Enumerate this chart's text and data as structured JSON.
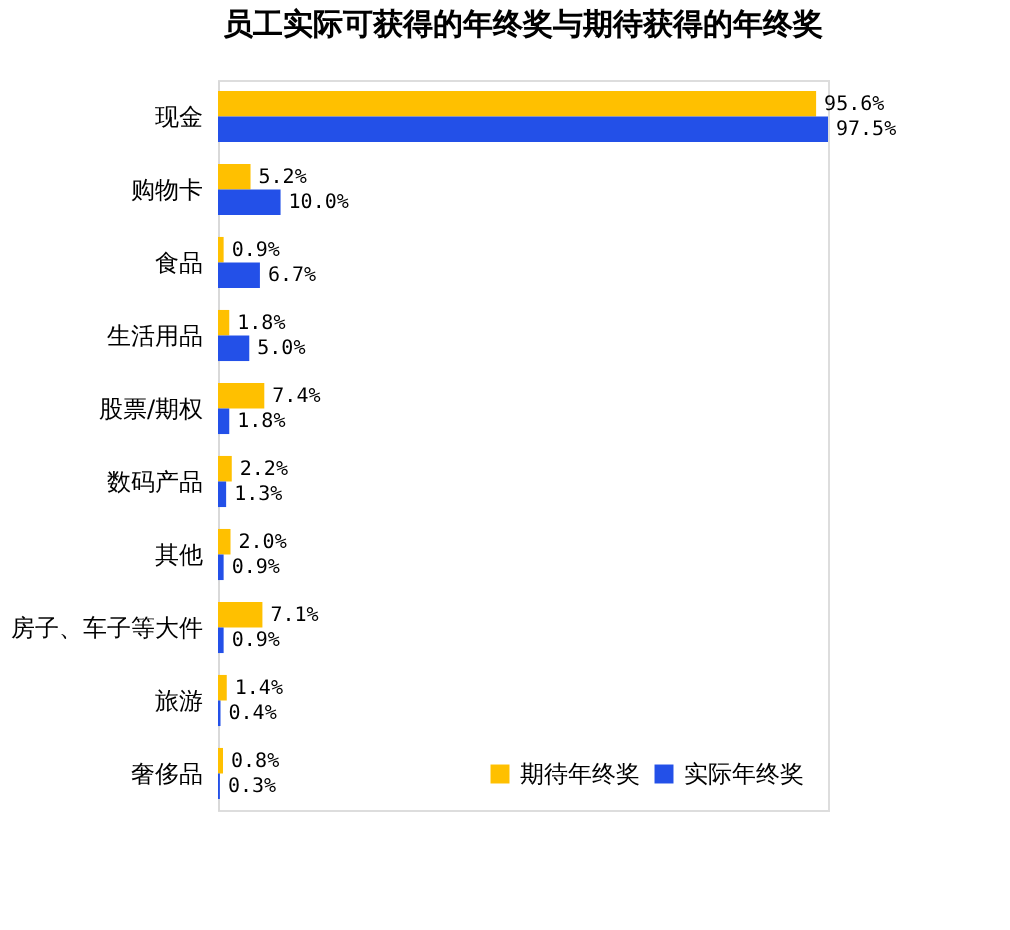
{
  "chart_data": {
    "type": "bar",
    "orientation": "horizontal",
    "title": "员工实际可获得的年终奖与期待获得的年终奖",
    "categories": [
      "现金",
      "购物卡",
      "食品",
      "生活用品",
      "股票/期权",
      "数码产品",
      "其他",
      "房子、车子等大件",
      "旅游",
      "奢侈品"
    ],
    "series": [
      {
        "name": "期待年终奖",
        "color": "#ffc000",
        "values": [
          95.6,
          5.2,
          0.9,
          1.8,
          7.4,
          2.2,
          2.0,
          7.1,
          1.4,
          0.8
        ],
        "value_labels": [
          "95.6%",
          "5.2%",
          "0.9%",
          "1.8%",
          "7.4%",
          "2.2%",
          "2.0%",
          "7.1%",
          "1.4%",
          "0.8%"
        ]
      },
      {
        "name": "实际年终奖",
        "color": "#2350e8",
        "values": [
          97.5,
          10.0,
          6.7,
          5.0,
          1.8,
          1.3,
          0.9,
          0.9,
          0.4,
          0.3
        ],
        "value_labels": [
          "97.5%",
          "10.0%",
          "6.7%",
          "5.0%",
          "1.8%",
          "1.3%",
          "0.9%",
          "0.9%",
          "0.4%",
          "0.3%"
        ]
      }
    ],
    "legend": "bottom right"
  }
}
